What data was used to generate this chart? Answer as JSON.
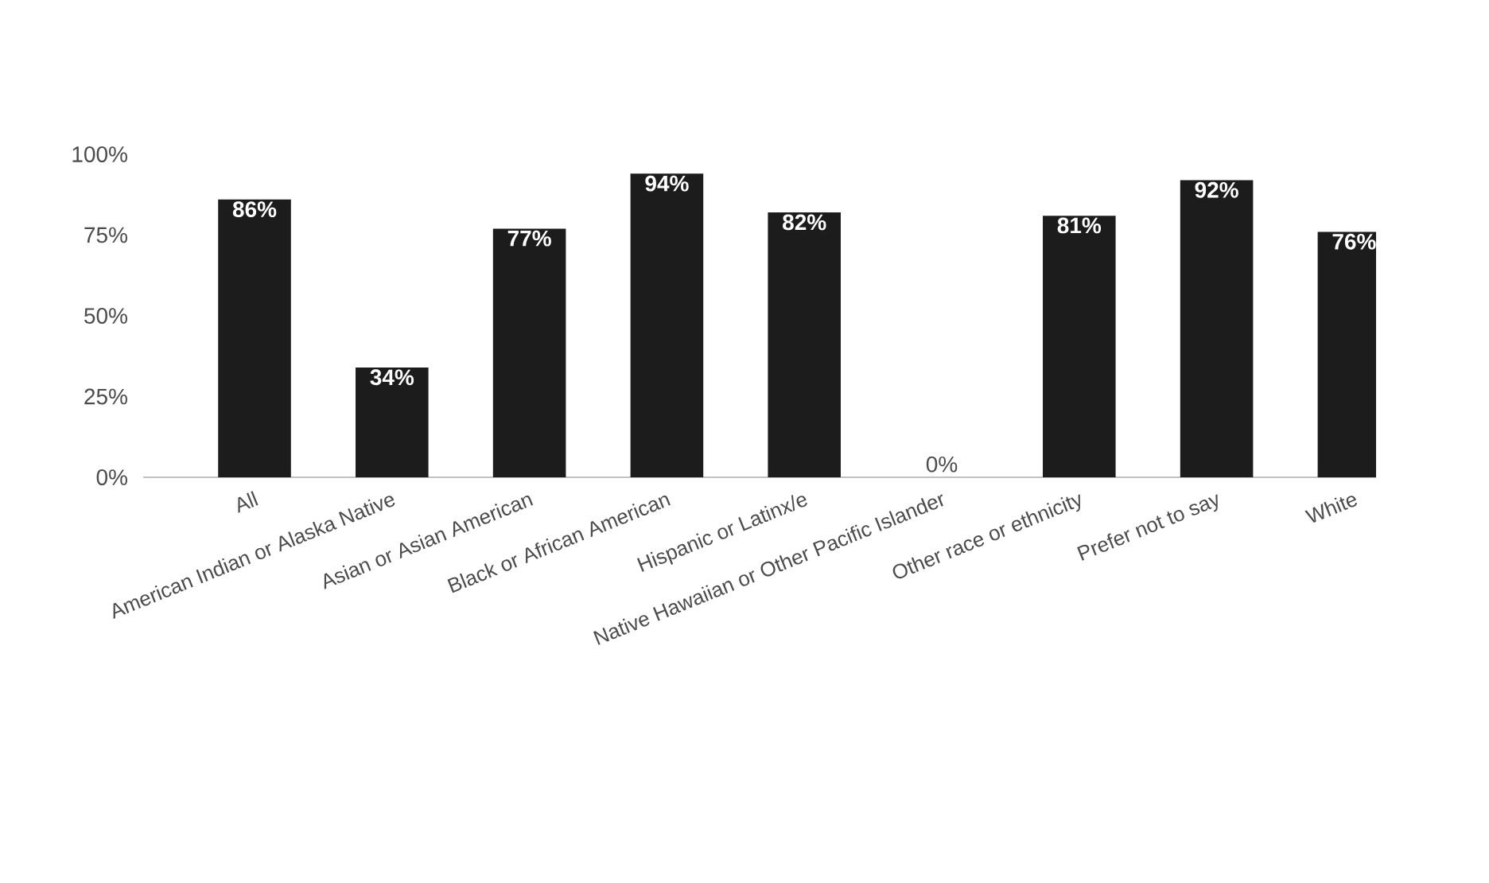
{
  "chart_data": {
    "type": "bar",
    "categories": [
      "All",
      "American Indian or Alaska Native",
      "Asian or Asian American",
      "Black or African American",
      "Hispanic or Latinx/e",
      "Native Hawaiian or Other Pacific Islander",
      "Other race or ethnicity",
      "Prefer not to say",
      "White"
    ],
    "values": [
      86,
      34,
      77,
      94,
      82,
      0,
      81,
      92,
      76
    ],
    "value_labels": [
      "86%",
      "34%",
      "77%",
      "94%",
      "82%",
      "0%",
      "81%",
      "92%",
      "76%"
    ],
    "color": "#1c1c1c",
    "ylim": [
      0,
      100
    ],
    "yticks": [
      {
        "value": 0,
        "label": "0%"
      },
      {
        "value": 25,
        "label": "25%"
      },
      {
        "value": 50,
        "label": "50%"
      },
      {
        "value": 75,
        "label": "75%"
      },
      {
        "value": 100,
        "label": "100%"
      }
    ],
    "grid": false
  }
}
